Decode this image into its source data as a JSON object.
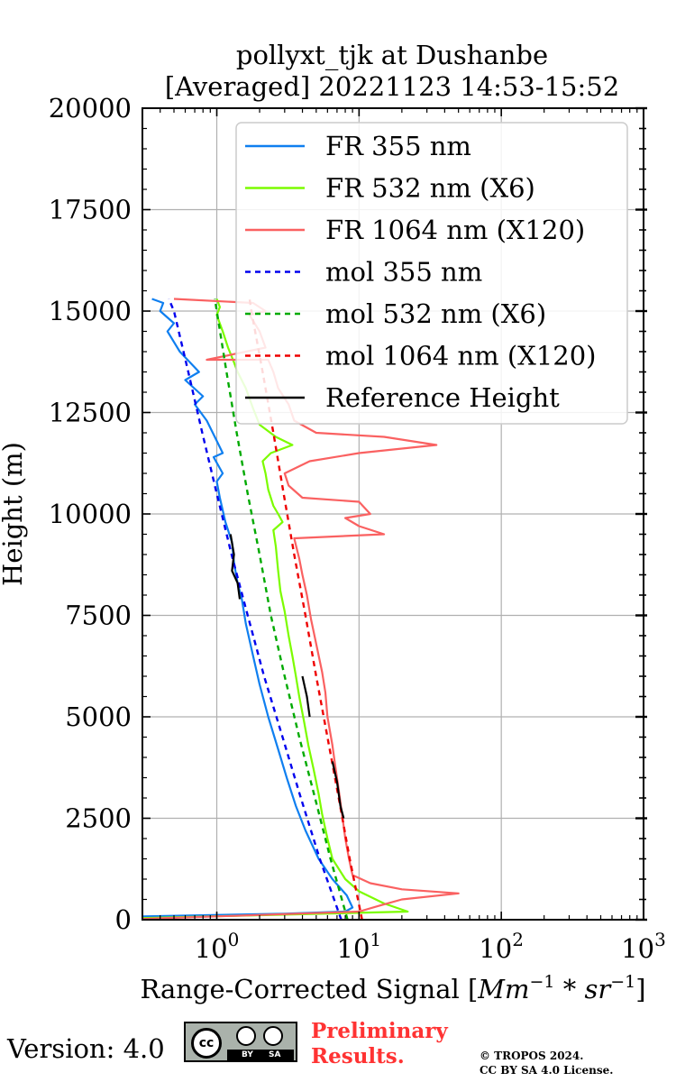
{
  "chart_data": {
    "type": "line",
    "title_line1": "pollyxt_tjk at Dushanbe",
    "title_line2": "[Averaged] 20221123 14:53-15:52",
    "xlabel_text": "Range-Corrected Signal [",
    "xlabel_math": "Mm",
    "xlabel_sup1": "−1",
    "xlabel_mid": " * sr",
    "xlabel_sup2": "−1",
    "xlabel_end": "]",
    "ylabel": "Height (m)",
    "xscale": "log",
    "xlim": [
      0.3,
      1000
    ],
    "ylim": [
      0,
      20000
    ],
    "grid": true,
    "legend_position": "top-right",
    "xticks": [
      {
        "value": 1,
        "base": "10",
        "exp": "0"
      },
      {
        "value": 10,
        "base": "10",
        "exp": "1"
      },
      {
        "value": 100,
        "base": "10",
        "exp": "2"
      },
      {
        "value": 1000,
        "base": "10",
        "exp": "3"
      }
    ],
    "yticks": [
      {
        "value": 0,
        "label": "0"
      },
      {
        "value": 2500,
        "label": "2500"
      },
      {
        "value": 5000,
        "label": "5000"
      },
      {
        "value": 7500,
        "label": "7500"
      },
      {
        "value": 10000,
        "label": "10000"
      },
      {
        "value": 12500,
        "label": "12500"
      },
      {
        "value": 15000,
        "label": "15000"
      },
      {
        "value": 17500,
        "label": "17500"
      },
      {
        "value": 20000,
        "label": "20000"
      }
    ],
    "series": [
      {
        "name": "FR 355 nm",
        "color": "#0f7ff0",
        "dash": "none",
        "points": [
          [
            0.3,
            80
          ],
          [
            3,
            150
          ],
          [
            8,
            200
          ],
          [
            9,
            300
          ],
          [
            8.2,
            600
          ],
          [
            6.5,
            1000
          ],
          [
            5.2,
            1500
          ],
          [
            4.2,
            2200
          ],
          [
            3.6,
            2800
          ],
          [
            3.1,
            3500
          ],
          [
            2.7,
            4200
          ],
          [
            2.3,
            5000
          ],
          [
            2.0,
            5800
          ],
          [
            1.8,
            6500
          ],
          [
            1.6,
            7300
          ],
          [
            1.5,
            7900
          ],
          [
            1.4,
            8300
          ],
          [
            1.32,
            8800
          ],
          [
            1.28,
            9300
          ],
          [
            1.15,
            9800
          ],
          [
            1.05,
            10400
          ],
          [
            1.0,
            10800
          ],
          [
            1.1,
            11000
          ],
          [
            0.95,
            11400
          ],
          [
            1.1,
            11500
          ],
          [
            1.0,
            11800
          ],
          [
            0.85,
            12300
          ],
          [
            0.7,
            12700
          ],
          [
            0.8,
            12900
          ],
          [
            0.6,
            13300
          ],
          [
            0.75,
            13500
          ],
          [
            0.55,
            14000
          ],
          [
            0.45,
            14500
          ],
          [
            0.5,
            14700
          ],
          [
            0.4,
            15000
          ],
          [
            0.42,
            15200
          ],
          [
            0.35,
            15300
          ]
        ]
      },
      {
        "name": "FR 532 nm (X6)",
        "color": "#7cfc00",
        "dash": "none",
        "points": [
          [
            0.3,
            40
          ],
          [
            22,
            200
          ],
          [
            15,
            400
          ],
          [
            10,
            700
          ],
          [
            8,
            1000
          ],
          [
            6.5,
            1500
          ],
          [
            6.0,
            2000
          ],
          [
            5.5,
            2600
          ],
          [
            5.2,
            3100
          ],
          [
            4.8,
            3700
          ],
          [
            4.4,
            4300
          ],
          [
            4.1,
            4900
          ],
          [
            3.8,
            5500
          ],
          [
            3.6,
            6000
          ],
          [
            3.4,
            6500
          ],
          [
            3.2,
            7000
          ],
          [
            3.0,
            7600
          ],
          [
            2.8,
            8100
          ],
          [
            2.7,
            8600
          ],
          [
            2.6,
            9200
          ],
          [
            2.5,
            9600
          ],
          [
            2.9,
            9800
          ],
          [
            2.7,
            10000
          ],
          [
            2.5,
            10200
          ],
          [
            2.3,
            10600
          ],
          [
            2.2,
            11000
          ],
          [
            2.1,
            11300
          ],
          [
            2.4,
            11500
          ],
          [
            3.4,
            11700
          ],
          [
            2.6,
            11900
          ],
          [
            2.0,
            12200
          ],
          [
            1.8,
            12600
          ],
          [
            1.6,
            13100
          ],
          [
            1.4,
            13500
          ],
          [
            1.3,
            13800
          ],
          [
            1.2,
            14100
          ],
          [
            1.1,
            14500
          ],
          [
            1.0,
            14900
          ],
          [
            1.05,
            15100
          ],
          [
            1.0,
            15300
          ]
        ]
      },
      {
        "name": "FR 1064 nm (X120)",
        "color": "#fa6161",
        "dash": "none",
        "points": [
          [
            0.3,
            20
          ],
          [
            10,
            200
          ],
          [
            14,
            350
          ],
          [
            20,
            500
          ],
          [
            50,
            650
          ],
          [
            20,
            750
          ],
          [
            12,
            900
          ],
          [
            9,
            1100
          ],
          [
            8.5,
            1500
          ],
          [
            8,
            2000
          ],
          [
            7.6,
            2600
          ],
          [
            7.2,
            3200
          ],
          [
            6.8,
            3800
          ],
          [
            6.5,
            4300
          ],
          [
            6.0,
            5000
          ],
          [
            5.8,
            5600
          ],
          [
            5.5,
            6100
          ],
          [
            5.0,
            6800
          ],
          [
            4.6,
            7400
          ],
          [
            4.3,
            8000
          ],
          [
            4.0,
            8500
          ],
          [
            3.8,
            8900
          ],
          [
            3.5,
            9400
          ],
          [
            15,
            9500
          ],
          [
            10,
            9700
          ],
          [
            8,
            9900
          ],
          [
            12,
            10000
          ],
          [
            10,
            10300
          ],
          [
            4,
            10400
          ],
          [
            3.2,
            10700
          ],
          [
            3.0,
            11000
          ],
          [
            4.5,
            11300
          ],
          [
            10,
            11500
          ],
          [
            35,
            11700
          ],
          [
            15,
            11900
          ],
          [
            5,
            12000
          ],
          [
            3.5,
            12300
          ],
          [
            3.2,
            12700
          ],
          [
            2.7,
            13100
          ],
          [
            2.5,
            13500
          ],
          [
            2.3,
            13800
          ],
          [
            0.85,
            13800
          ],
          [
            2.2,
            14100
          ],
          [
            2.0,
            14500
          ],
          [
            1.7,
            14900
          ],
          [
            2.2,
            15000
          ],
          [
            1.8,
            15200
          ],
          [
            0.5,
            15300
          ]
        ]
      },
      {
        "name": "mol 355 nm",
        "color": "#0000ee",
        "dash": "6,5",
        "points": [
          [
            7.5,
            0
          ],
          [
            5.3,
            1500
          ],
          [
            3.9,
            3000
          ],
          [
            2.9,
            4500
          ],
          [
            2.15,
            6000
          ],
          [
            1.65,
            7500
          ],
          [
            1.27,
            9000
          ],
          [
            1.0,
            10500
          ],
          [
            0.79,
            12000
          ],
          [
            0.63,
            13500
          ],
          [
            0.5,
            15000
          ],
          [
            0.46,
            15300
          ]
        ]
      },
      {
        "name": "mol 532 nm (X6)",
        "color": "#00aa00",
        "dash": "6,5",
        "points": [
          [
            8.3,
            0
          ],
          [
            6.3,
            1500
          ],
          [
            4.9,
            3000
          ],
          [
            3.8,
            4500
          ],
          [
            3.0,
            6000
          ],
          [
            2.4,
            7500
          ],
          [
            2.0,
            9000
          ],
          [
            1.65,
            10500
          ],
          [
            1.38,
            12000
          ],
          [
            1.17,
            13500
          ],
          [
            1.0,
            15000
          ],
          [
            0.97,
            15300
          ]
        ]
      },
      {
        "name": "mol 1064 nm (X120)",
        "color": "#ee0000",
        "dash": "6,5",
        "points": [
          [
            10.5,
            0
          ],
          [
            8.6,
            1500
          ],
          [
            7.2,
            3000
          ],
          [
            6.0,
            4500
          ],
          [
            5.0,
            6000
          ],
          [
            4.2,
            7500
          ],
          [
            3.5,
            9000
          ],
          [
            2.95,
            10500
          ],
          [
            2.5,
            12000
          ],
          [
            2.1,
            13500
          ],
          [
            1.75,
            15000
          ],
          [
            1.7,
            15300
          ]
        ]
      },
      {
        "name": "Reference Height",
        "color": "#000000",
        "dash": "none",
        "segments": [
          [
            [
              1.25,
              9500
            ],
            [
              1.32,
              9000
            ],
            [
              1.28,
              8600
            ],
            [
              1.4,
              8300
            ],
            [
              1.45,
              7900
            ]
          ],
          [
            [
              4.0,
              6000
            ],
            [
              4.3,
              5500
            ],
            [
              4.5,
              5000
            ]
          ],
          [
            [
              6.5,
              3900
            ],
            [
              7.0,
              3400
            ],
            [
              7.4,
              2800
            ],
            [
              7.8,
              2500
            ]
          ]
        ]
      }
    ]
  },
  "footer": {
    "version": "Version: 4.0",
    "cc_by": "BY",
    "cc_sa": "SA",
    "cc_logo": "cc",
    "preliminary_line1": "Preliminary",
    "preliminary_line2": "Results.",
    "copyright_line1": "© TROPOS 2024.",
    "copyright_line2": "CC BY SA 4.0 License."
  }
}
